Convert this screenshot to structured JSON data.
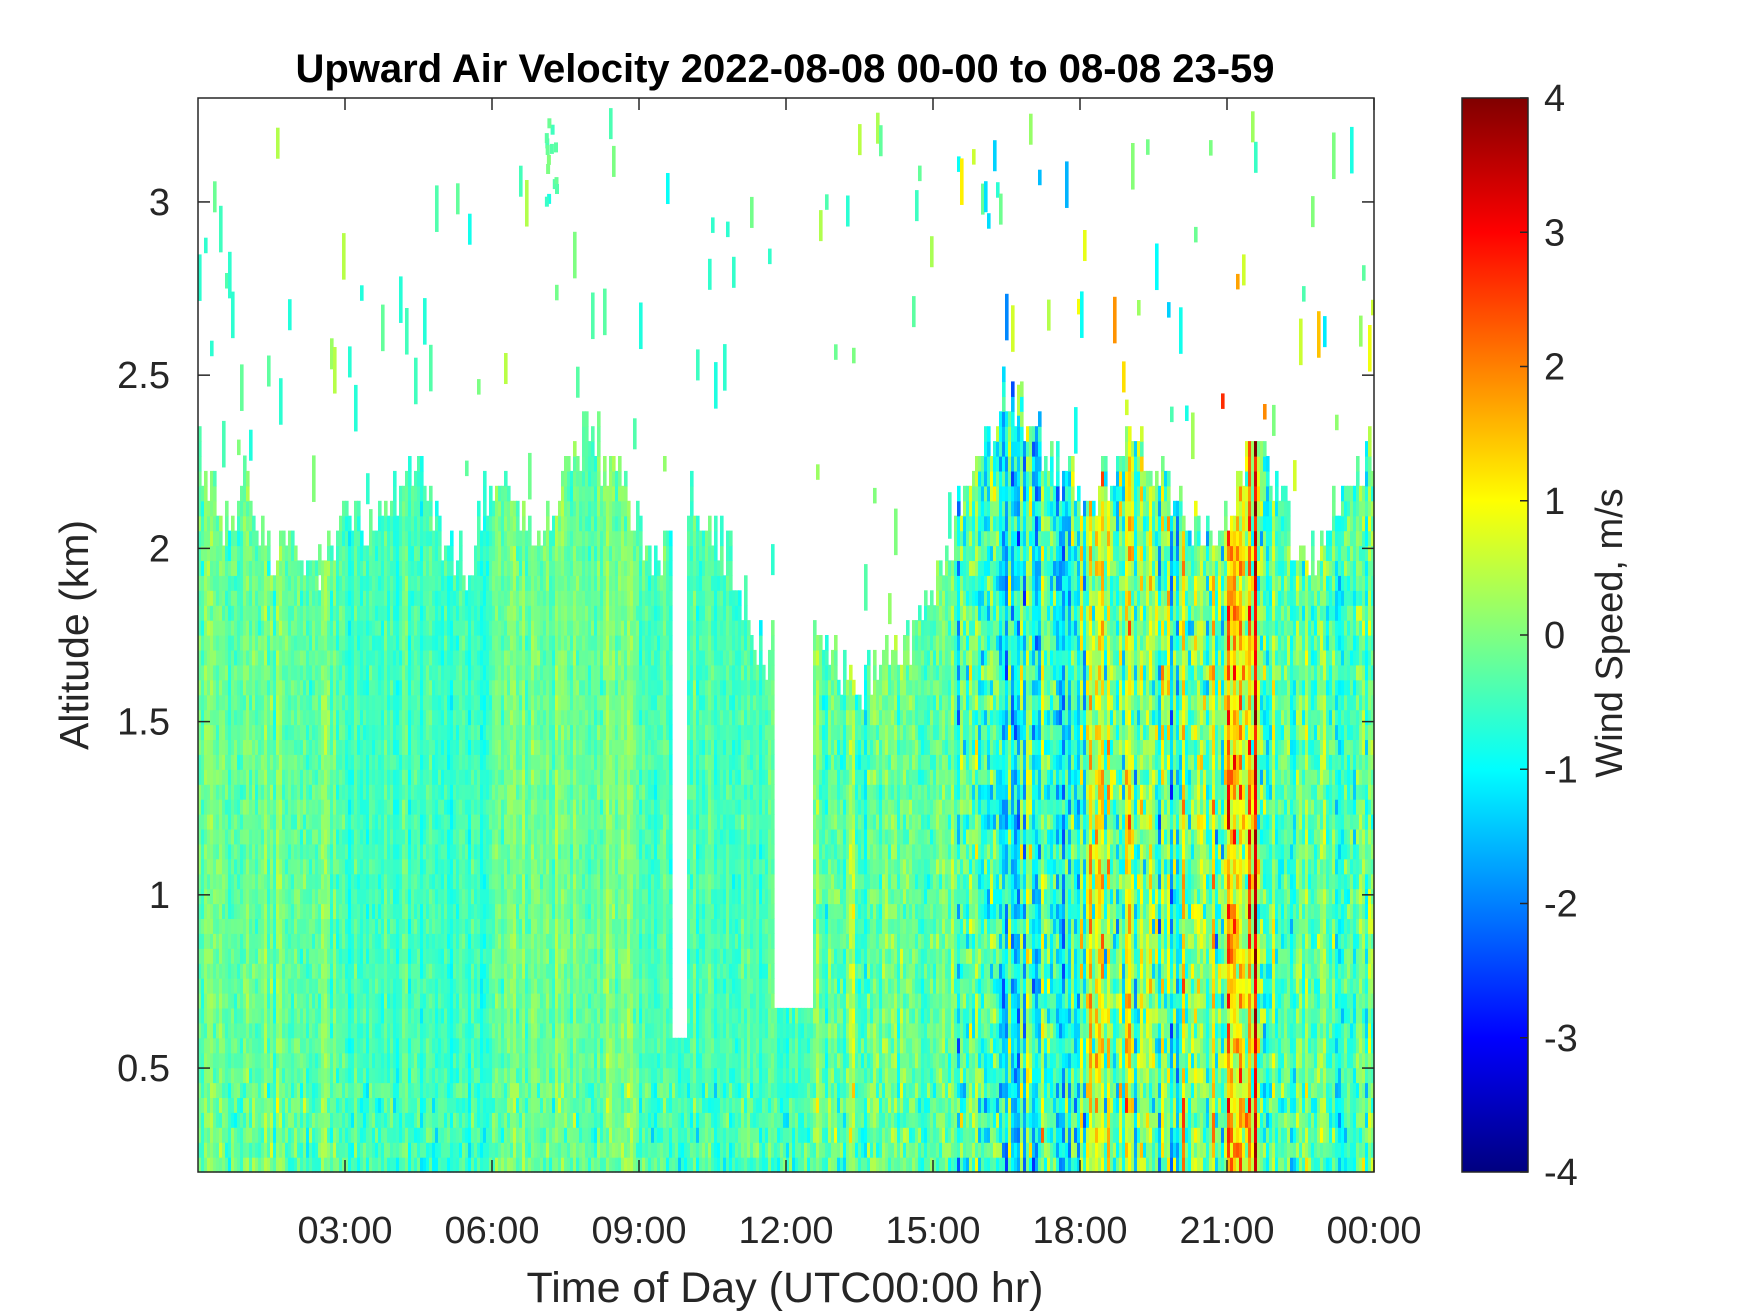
{
  "chart_data": {
    "type": "heatmap",
    "title": "Upward Air Velocity 2022-08-08 00-00 to 08-08 23-59",
    "xlabel": "Time of Day (UTC00:00 hr)",
    "ylabel": "Altitude (km)",
    "colorbar_label": "Wind Speed, m/s",
    "x_unit": "hours UTC",
    "xlim": [
      0,
      24
    ],
    "ylim": [
      0.2,
      3.3
    ],
    "clim": [
      -4,
      4
    ],
    "colormap": "jet",
    "x_ticks": [
      3,
      6,
      9,
      12,
      15,
      18,
      21,
      24
    ],
    "x_tick_labels": [
      "03:00",
      "06:00",
      "09:00",
      "12:00",
      "15:00",
      "18:00",
      "21:00",
      "00:00"
    ],
    "y_ticks": [
      0.5,
      1,
      1.5,
      2,
      2.5,
      3
    ],
    "y_tick_labels": [
      "0.5",
      "1",
      "1.5",
      "2",
      "2.5",
      "3"
    ],
    "colorbar_ticks": [
      -4,
      -3,
      -2,
      -1,
      0,
      1,
      2,
      3,
      4
    ],
    "colorbar_tick_labels": [
      "-4",
      "-3",
      "-2",
      "-1",
      "0",
      "1",
      "2",
      "3",
      "4"
    ],
    "data_top_altitude_km": [
      [
        0.0,
        2.3
      ],
      [
        0.5,
        2.1
      ],
      [
        1.0,
        2.15
      ],
      [
        1.5,
        2.0
      ],
      [
        2.5,
        1.9
      ],
      [
        3.0,
        2.15
      ],
      [
        3.5,
        2.05
      ],
      [
        4.0,
        2.15
      ],
      [
        4.5,
        2.25
      ],
      [
        5.0,
        2.05
      ],
      [
        5.5,
        1.95
      ],
      [
        6.0,
        2.2
      ],
      [
        6.5,
        2.1
      ],
      [
        7.0,
        2.0
      ],
      [
        7.5,
        2.25
      ],
      [
        8.0,
        2.35
      ],
      [
        8.5,
        2.2
      ],
      [
        9.0,
        2.05
      ],
      [
        9.5,
        2.0
      ],
      [
        10.0,
        2.15
      ],
      [
        10.5,
        2.05
      ],
      [
        11.0,
        1.95
      ],
      [
        11.5,
        1.7
      ],
      [
        12.5,
        1.75
      ],
      [
        13.0,
        1.7
      ],
      [
        13.5,
        1.6
      ],
      [
        14.0,
        1.65
      ],
      [
        14.5,
        1.75
      ],
      [
        15.0,
        1.9
      ],
      [
        15.5,
        2.1
      ],
      [
        16.0,
        2.3
      ],
      [
        16.5,
        2.45
      ],
      [
        17.0,
        2.35
      ],
      [
        17.5,
        2.25
      ],
      [
        18.0,
        2.15
      ],
      [
        18.5,
        2.2
      ],
      [
        19.0,
        2.35
      ],
      [
        19.5,
        2.25
      ],
      [
        20.0,
        2.1
      ],
      [
        20.5,
        2.05
      ],
      [
        21.0,
        2.1
      ],
      [
        21.5,
        2.3
      ],
      [
        22.0,
        2.2
      ],
      [
        22.5,
        1.95
      ],
      [
        23.0,
        2.05
      ],
      [
        23.5,
        2.15
      ],
      [
        24.0,
        2.3
      ]
    ],
    "data_gaps": [
      {
        "x": [
          9.7,
          9.95
        ],
        "y": [
          0.57,
          3.3
        ]
      },
      {
        "x": [
          11.75,
          12.55
        ],
        "y": [
          0.68,
          3.3
        ]
      }
    ],
    "isolated_echo": {
      "x": [
        7.05,
        7.3
      ],
      "y": [
        2.95,
        3.25
      ],
      "value": -0.3
    },
    "velocity_bands": [
      {
        "x": [
          0.0,
          3.0
        ],
        "mean": -0.2,
        "spread": 0.5
      },
      {
        "x": [
          3.0,
          6.0
        ],
        "mean": -0.5,
        "spread": 0.4
      },
      {
        "x": [
          6.0,
          9.0
        ],
        "mean": -0.1,
        "spread": 0.45
      },
      {
        "x": [
          9.0,
          12.5
        ],
        "mean": -0.45,
        "spread": 0.4
      },
      {
        "x": [
          12.5,
          15.5
        ],
        "mean": -0.2,
        "spread": 0.7
      },
      {
        "x": [
          15.5,
          18.0
        ],
        "mean": -0.5,
        "spread": 1.4
      },
      {
        "x": [
          18.0,
          21.0
        ],
        "mean": 0.0,
        "spread": 1.5
      },
      {
        "x": [
          21.0,
          21.8
        ],
        "mean": 1.2,
        "spread": 1.8
      },
      {
        "x": [
          21.8,
          24.0
        ],
        "mean": -0.3,
        "spread": 0.9
      }
    ]
  }
}
